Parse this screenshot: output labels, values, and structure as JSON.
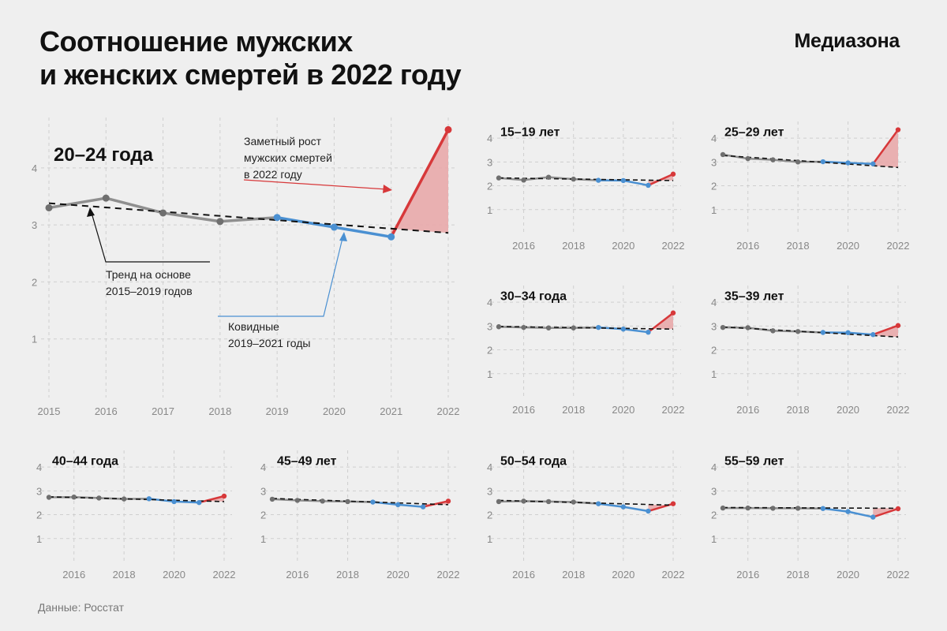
{
  "title": [
    "Соотношение мужских",
    "и женских смертей в 2022 году"
  ],
  "brand": "Медиазона",
  "source": "Данные: Росстат",
  "colors": {
    "base": "#8f8f8f",
    "covid": "#4a90d2",
    "y2022": "#d7383a",
    "fill": "#e8a9aa",
    "trend": "#111111",
    "grid": "#cfcfcf"
  },
  "annotations": {
    "growth": [
      "Заметный рост",
      "мужских смертей",
      "в 2022 году"
    ],
    "trend": [
      "Тренд на основе",
      "2015–2019 годов"
    ],
    "covid": [
      "Ковидные",
      "2019–2021 годы"
    ]
  },
  "chart_data": [
    {
      "type": "line",
      "title": "20–24 года",
      "x": [
        2015,
        2016,
        2017,
        2018,
        2019,
        2020,
        2021,
        2022
      ],
      "values": [
        3.3,
        3.47,
        3.21,
        3.06,
        3.13,
        2.96,
        2.79,
        4.67
      ],
      "xticks": [
        "2015",
        "2016",
        "2017",
        "2018",
        "2019",
        "2020",
        "2021",
        "2022"
      ],
      "yticks": [
        "1",
        "2",
        "3",
        "4"
      ],
      "ylim": [
        0,
        4.8
      ],
      "trend": [
        3.38,
        2.86
      ],
      "grid": true
    },
    {
      "type": "line",
      "title": "15–19 лет",
      "x": [
        2015,
        2016,
        2017,
        2018,
        2019,
        2020,
        2021,
        2022
      ],
      "values": [
        2.33,
        2.24,
        2.36,
        2.28,
        2.23,
        2.22,
        2.02,
        2.49
      ],
      "xticks": [
        "2016",
        "2018",
        "2020",
        "2022"
      ],
      "yticks": [
        "1",
        "2",
        "3",
        "4"
      ],
      "ylim": [
        0,
        4.5
      ],
      "trend": [
        2.33,
        2.22
      ],
      "grid": true
    },
    {
      "type": "line",
      "title": "25–29 лет",
      "x": [
        2015,
        2016,
        2017,
        2018,
        2019,
        2020,
        2021,
        2022
      ],
      "values": [
        3.31,
        3.14,
        3.09,
        3.0,
        3.01,
        2.96,
        2.92,
        4.35
      ],
      "xticks": [
        "2016",
        "2018",
        "2020",
        "2022"
      ],
      "yticks": [
        "1",
        "2",
        "3",
        "4"
      ],
      "ylim": [
        0,
        4.5
      ],
      "trend": [
        3.27,
        2.77
      ],
      "grid": true
    },
    {
      "type": "line",
      "title": "30–34 года",
      "x": [
        2015,
        2016,
        2017,
        2018,
        2019,
        2020,
        2021,
        2022
      ],
      "values": [
        2.97,
        2.94,
        2.92,
        2.92,
        2.94,
        2.87,
        2.74,
        3.55
      ],
      "xticks": [
        "2016",
        "2018",
        "2020",
        "2022"
      ],
      "yticks": [
        "1",
        "2",
        "3",
        "4"
      ],
      "ylim": [
        0,
        4.5
      ],
      "trend": [
        2.98,
        2.87
      ],
      "grid": true
    },
    {
      "type": "line",
      "title": "35–39 лет",
      "x": [
        2015,
        2016,
        2017,
        2018,
        2019,
        2020,
        2021,
        2022
      ],
      "values": [
        2.94,
        2.93,
        2.8,
        2.77,
        2.73,
        2.72,
        2.64,
        3.02
      ],
      "xticks": [
        "2016",
        "2018",
        "2020",
        "2022"
      ],
      "yticks": [
        "1",
        "2",
        "3",
        "4"
      ],
      "ylim": [
        0,
        4.5
      ],
      "trend": [
        2.96,
        2.54
      ],
      "grid": true
    },
    {
      "type": "line",
      "title": "40–44 года",
      "x": [
        2015,
        2016,
        2017,
        2018,
        2019,
        2020,
        2021,
        2022
      ],
      "values": [
        2.73,
        2.74,
        2.7,
        2.66,
        2.67,
        2.55,
        2.51,
        2.78
      ],
      "xticks": [
        "2016",
        "2018",
        "2020",
        "2022"
      ],
      "yticks": [
        "1",
        "2",
        "3",
        "4"
      ],
      "ylim": [
        0,
        4.5
      ],
      "trend": [
        2.75,
        2.55
      ],
      "grid": true
    },
    {
      "type": "line",
      "title": "45–49 лет",
      "x": [
        2015,
        2016,
        2017,
        2018,
        2019,
        2020,
        2021,
        2022
      ],
      "values": [
        2.65,
        2.6,
        2.57,
        2.55,
        2.53,
        2.42,
        2.33,
        2.57
      ],
      "xticks": [
        "2016",
        "2018",
        "2020",
        "2022"
      ],
      "yticks": [
        "1",
        "2",
        "3",
        "4"
      ],
      "ylim": [
        0,
        4.5
      ],
      "trend": [
        2.68,
        2.42
      ],
      "grid": true
    },
    {
      "type": "line",
      "title": "50–54 года",
      "x": [
        2015,
        2016,
        2017,
        2018,
        2019,
        2020,
        2021,
        2022
      ],
      "values": [
        2.55,
        2.57,
        2.55,
        2.53,
        2.46,
        2.33,
        2.15,
        2.46
      ],
      "xticks": [
        "2016",
        "2018",
        "2020",
        "2022"
      ],
      "yticks": [
        "1",
        "2",
        "3",
        "4"
      ],
      "ylim": [
        0,
        4.5
      ],
      "trend": [
        2.6,
        2.4
      ],
      "grid": true
    },
    {
      "type": "line",
      "title": "55–59 лет",
      "x": [
        2015,
        2016,
        2017,
        2018,
        2019,
        2020,
        2021,
        2022
      ],
      "values": [
        2.28,
        2.28,
        2.27,
        2.27,
        2.26,
        2.13,
        1.9,
        2.25
      ],
      "xticks": [
        "2016",
        "2018",
        "2020",
        "2022"
      ],
      "yticks": [
        "1",
        "2",
        "3",
        "4"
      ],
      "ylim": [
        0,
        4.5
      ],
      "trend": [
        2.3,
        2.27
      ],
      "grid": true
    }
  ]
}
